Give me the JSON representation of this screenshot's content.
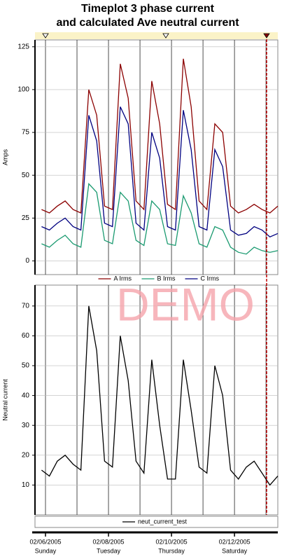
{
  "chart_data": [
    {
      "type": "line",
      "title": "Timeplot 3 phase current",
      "subtitle": "and calculated Ave neutral current",
      "y_label": "Amps",
      "x": [
        "2005-02-05T21:00",
        "2005-02-06T03:00",
        "2005-02-06T09:00",
        "2005-02-06T15:00",
        "2005-02-06T21:00",
        "2005-02-07T03:00",
        "2005-02-07T09:00",
        "2005-02-07T15:00",
        "2005-02-07T21:00",
        "2005-02-08T03:00",
        "2005-02-08T09:00",
        "2005-02-08T15:00",
        "2005-02-08T21:00",
        "2005-02-09T03:00",
        "2005-02-09T09:00",
        "2005-02-09T15:00",
        "2005-02-09T21:00",
        "2005-02-10T03:00",
        "2005-02-10T09:00",
        "2005-02-10T15:00",
        "2005-02-10T21:00",
        "2005-02-11T03:00",
        "2005-02-11T09:00",
        "2005-02-11T15:00",
        "2005-02-11T21:00",
        "2005-02-12T03:00",
        "2005-02-12T09:00",
        "2005-02-12T15:00",
        "2005-02-12T21:00",
        "2005-02-13T03:00",
        "2005-02-13T09:00"
      ],
      "xlim": [
        "2005-02-05T16:00",
        "2005-02-13T09:00"
      ],
      "series": [
        {
          "name": "A Irms",
          "color": "#8b0000",
          "values": [
            30,
            28,
            32,
            35,
            30,
            28,
            100,
            85,
            32,
            30,
            115,
            95,
            35,
            30,
            105,
            80,
            33,
            30,
            118,
            90,
            35,
            30,
            80,
            75,
            32,
            28,
            30,
            33,
            30,
            28,
            32
          ]
        },
        {
          "name": "B Irms",
          "color": "#1a9a70",
          "values": [
            10,
            8,
            12,
            15,
            10,
            8,
            45,
            40,
            12,
            10,
            40,
            35,
            12,
            9,
            35,
            30,
            10,
            9,
            38,
            28,
            10,
            8,
            20,
            18,
            8,
            5,
            4,
            8,
            6,
            5,
            6
          ]
        },
        {
          "name": "C Irms",
          "color": "#000080",
          "values": [
            20,
            18,
            22,
            25,
            20,
            18,
            85,
            70,
            22,
            20,
            90,
            80,
            22,
            18,
            75,
            60,
            20,
            18,
            88,
            65,
            20,
            18,
            65,
            55,
            18,
            15,
            16,
            20,
            18,
            14,
            16
          ]
        }
      ],
      "ylim": [
        -8,
        129
      ],
      "yticks": [
        0,
        25,
        50,
        75,
        100,
        125
      ],
      "grid": true
    },
    {
      "type": "line",
      "y_label": "Neutral current",
      "watermark": "DEMO",
      "x": [
        "2005-02-05T21:00",
        "2005-02-06T03:00",
        "2005-02-06T09:00",
        "2005-02-06T15:00",
        "2005-02-06T21:00",
        "2005-02-07T03:00",
        "2005-02-07T09:00",
        "2005-02-07T15:00",
        "2005-02-07T21:00",
        "2005-02-08T03:00",
        "2005-02-08T09:00",
        "2005-02-08T15:00",
        "2005-02-08T21:00",
        "2005-02-09T03:00",
        "2005-02-09T09:00",
        "2005-02-09T15:00",
        "2005-02-09T21:00",
        "2005-02-10T03:00",
        "2005-02-10T09:00",
        "2005-02-10T15:00",
        "2005-02-10T21:00",
        "2005-02-11T03:00",
        "2005-02-11T09:00",
        "2005-02-11T15:00",
        "2005-02-11T21:00",
        "2005-02-12T03:00",
        "2005-02-12T09:00",
        "2005-02-12T15:00",
        "2005-02-12T21:00",
        "2005-02-13T03:00",
        "2005-02-13T09:00"
      ],
      "xlim": [
        "2005-02-05T16:00",
        "2005-02-13T09:00"
      ],
      "series": [
        {
          "name": "neut_current_test",
          "color": "#000000",
          "values": [
            15,
            13,
            18,
            20,
            17,
            15,
            70,
            55,
            18,
            16,
            60,
            45,
            18,
            14,
            52,
            30,
            12,
            12,
            52,
            35,
            16,
            14,
            50,
            40,
            15,
            12,
            16,
            18,
            14,
            10,
            13
          ]
        }
      ],
      "ylim": [
        0,
        77
      ],
      "yticks": [
        10,
        20,
        30,
        40,
        50,
        60,
        70
      ],
      "grid": true,
      "xticks": [
        {
          "value": "2005-02-06",
          "label": "02/06/2005"
        },
        {
          "value": "2005-02-08",
          "label": "02/08/2005"
        },
        {
          "value": "2005-02-10",
          "label": "02/10/2005"
        },
        {
          "value": "2005-02-12",
          "label": "02/12/2005"
        }
      ],
      "xtick_sublabels": [
        "Sunday",
        "Tuesday",
        "Thursday",
        "Saturday"
      ]
    }
  ]
}
